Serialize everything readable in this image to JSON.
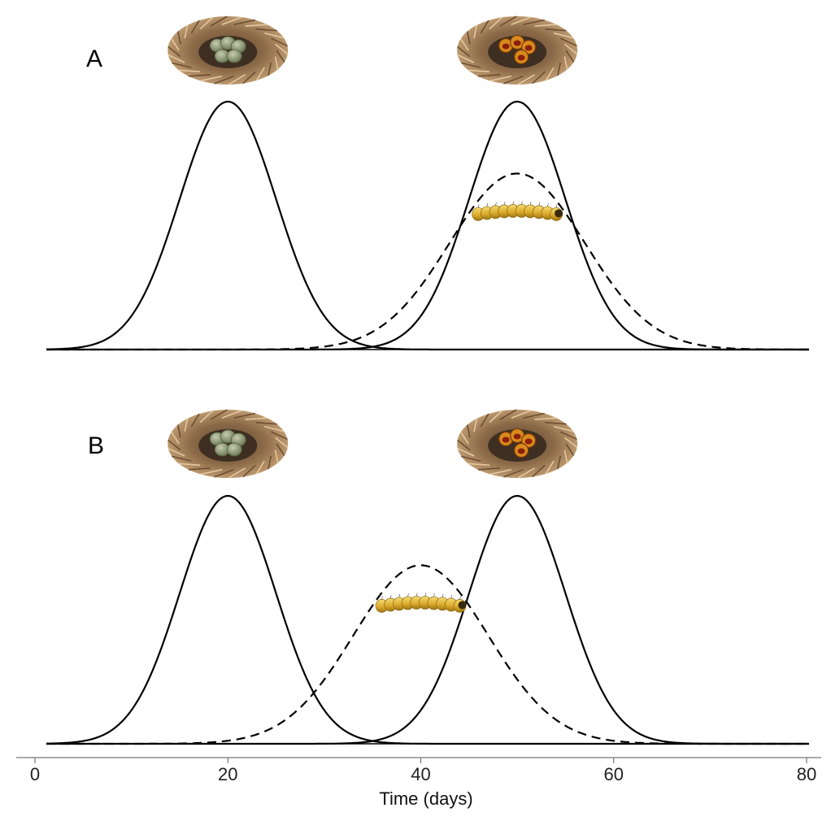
{
  "chart_data": [
    {
      "type": "line",
      "panel_label": "A",
      "xlabel": "Time (days)",
      "ylabel": "",
      "xlim": [
        0,
        80
      ],
      "xticks": [
        0,
        20,
        40,
        60,
        80
      ],
      "grid": false,
      "series": [
        {
          "style": "solid",
          "shape": "gaussian",
          "mean": 20,
          "sd": 5,
          "peak": 1.0
        },
        {
          "style": "solid",
          "shape": "gaussian",
          "mean": 50,
          "sd": 5,
          "peak": 1.0
        },
        {
          "style": "dashed",
          "shape": "gaussian",
          "mean": 50,
          "sd": 7,
          "peak": 0.71
        }
      ],
      "icons": [
        {
          "name": "nest-with-eggs-icon",
          "x": 20
        },
        {
          "name": "nest-with-chicks-icon",
          "x": 50
        },
        {
          "name": "caterpillar-icon",
          "x": 50
        }
      ]
    },
    {
      "type": "line",
      "panel_label": "B",
      "xlabel": "Time (days)",
      "ylabel": "",
      "xlim": [
        0,
        80
      ],
      "xticks": [
        0,
        20,
        40,
        60,
        80
      ],
      "grid": false,
      "series": [
        {
          "style": "solid",
          "shape": "gaussian",
          "mean": 20,
          "sd": 5,
          "peak": 1.0
        },
        {
          "style": "solid",
          "shape": "gaussian",
          "mean": 50,
          "sd": 5,
          "peak": 1.0
        },
        {
          "style": "dashed",
          "shape": "gaussian",
          "mean": 40,
          "sd": 7,
          "peak": 0.72
        }
      ],
      "icons": [
        {
          "name": "nest-with-eggs-icon",
          "x": 20
        },
        {
          "name": "nest-with-chicks-icon",
          "x": 50
        },
        {
          "name": "caterpillar-icon",
          "x": 40
        }
      ]
    }
  ]
}
